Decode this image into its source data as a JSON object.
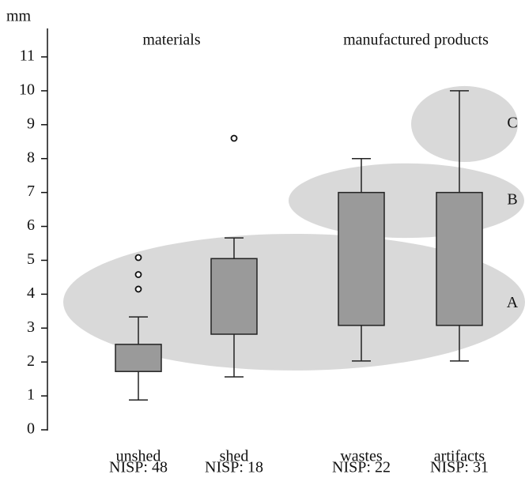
{
  "chart_data": {
    "type": "box",
    "y_label": "mm",
    "groups": [
      "materials",
      "manufactured products"
    ],
    "categories": [
      "unshed",
      "shed",
      "wastes",
      "artifacts"
    ],
    "nisp": [
      "NISP: 48",
      "NISP: 18",
      "NISP: 22",
      "NISP: 31"
    ],
    "boxes": [
      {
        "low": 0.88,
        "q1": 1.72,
        "q3": 2.52,
        "high": 3.33,
        "outliers": [
          4.15,
          4.58,
          5.08
        ]
      },
      {
        "low": 1.56,
        "q1": 2.82,
        "q3": 5.05,
        "high": 5.66,
        "outliers": [
          8.6
        ]
      },
      {
        "low": 2.03,
        "q1": 3.08,
        "q3": 7.0,
        "high": 8.0,
        "outliers": []
      },
      {
        "low": 2.03,
        "q1": 3.08,
        "q3": 7.0,
        "high": 10.0,
        "outliers": []
      }
    ],
    "zones": [
      {
        "label": "A",
        "range": [
          1.75,
          5.78
        ]
      },
      {
        "label": "B",
        "range": [
          5.66,
          7.86
        ]
      },
      {
        "label": "C",
        "range": [
          7.9,
          10.14
        ]
      }
    ],
    "box_color": "#9a9a9a",
    "zone_color": "#d2d2d2",
    "ylim": [
      0,
      11
    ],
    "yticks": [
      0,
      1,
      2,
      3,
      4,
      5,
      6,
      7,
      8,
      9,
      10,
      11
    ]
  }
}
